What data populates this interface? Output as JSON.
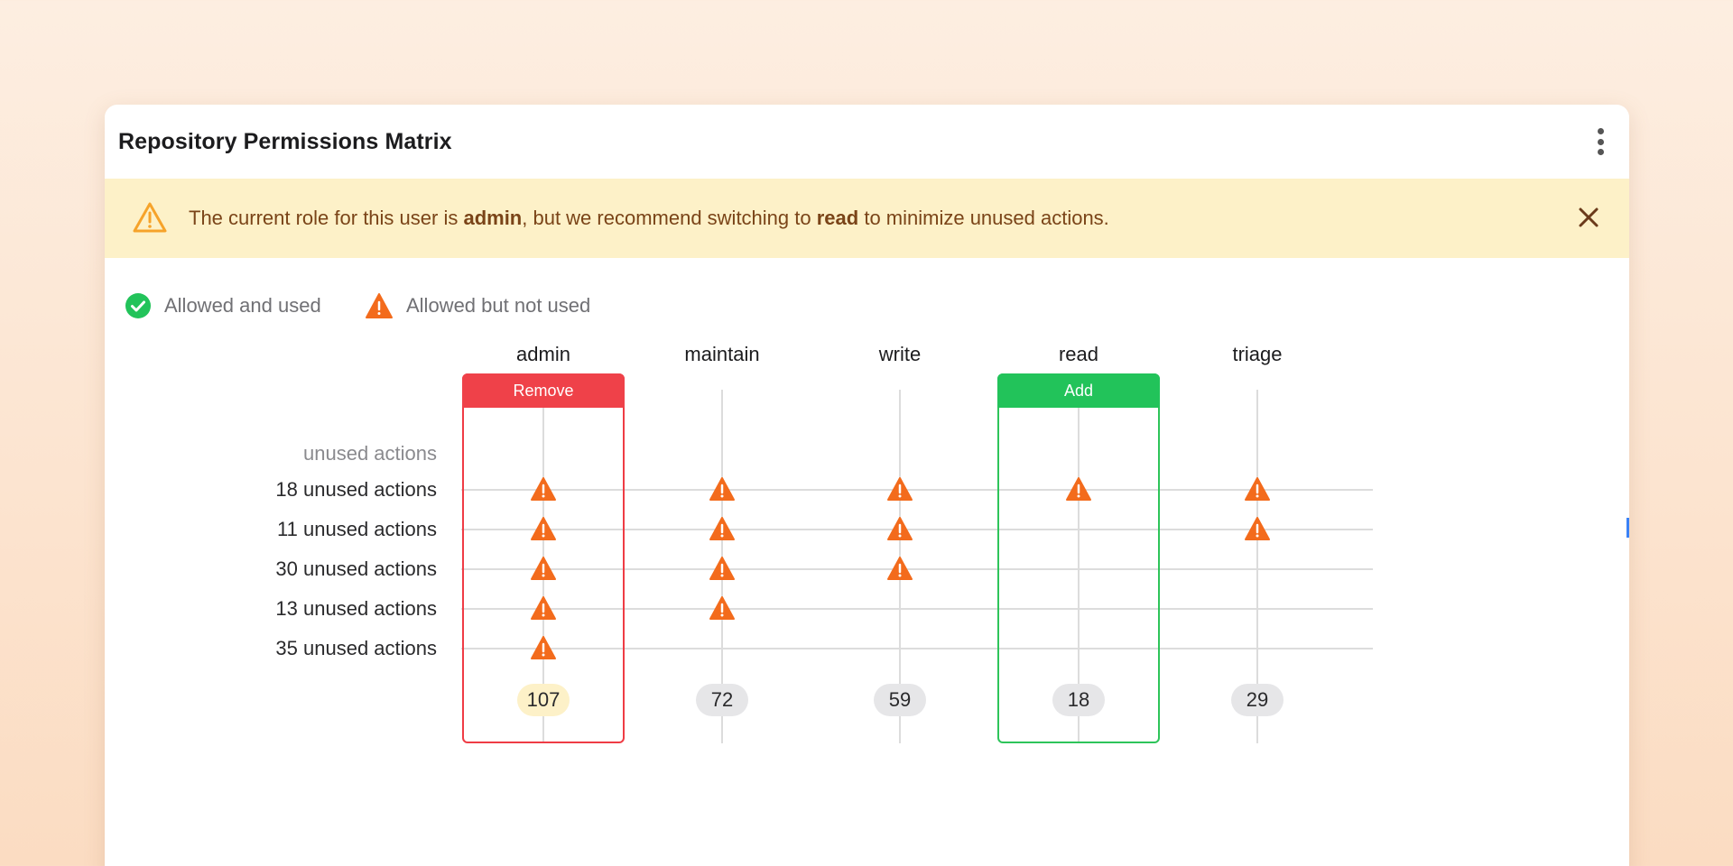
{
  "card": {
    "title": "Repository Permissions Matrix",
    "menu_icon": "kebab-vertical-icon"
  },
  "banner": {
    "icon": "warning-triangle-icon",
    "text_prefix": "The current role for this user is ",
    "current_role": "admin",
    "text_middle": ", but we recommend switching to ",
    "recommended_role": "read",
    "text_suffix": " to minimize unused actions.",
    "close_icon": "close-icon"
  },
  "legend": [
    {
      "icon": "check-circle-icon",
      "label": "Allowed and used",
      "color": "#22c35a"
    },
    {
      "icon": "warning-triangle-icon",
      "label": "Allowed but not used",
      "color": "#f36b1c"
    }
  ],
  "matrix": {
    "row_header": "unused actions",
    "roles": [
      {
        "name": "admin",
        "action": "Remove",
        "action_color": "#ef4149",
        "total": "107",
        "highlight": true
      },
      {
        "name": "maintain",
        "action": "",
        "total": "72",
        "highlight": false
      },
      {
        "name": "write",
        "action": "",
        "total": "59",
        "highlight": false
      },
      {
        "name": "read",
        "action": "Add",
        "action_color": "#22c35a",
        "total": "18",
        "highlight": false
      },
      {
        "name": "triage",
        "action": "",
        "total": "29",
        "highlight": false
      }
    ],
    "rows": [
      {
        "label": "18 unused actions",
        "cells": [
          true,
          true,
          true,
          true,
          true
        ]
      },
      {
        "label": "11 unused actions",
        "cells": [
          true,
          true,
          true,
          false,
          true
        ]
      },
      {
        "label": "30 unused actions",
        "cells": [
          true,
          true,
          true,
          false,
          false
        ]
      },
      {
        "label": "13 unused actions",
        "cells": [
          true,
          true,
          false,
          false,
          false
        ]
      },
      {
        "label": "35 unused actions",
        "cells": [
          true,
          false,
          false,
          false,
          false
        ]
      }
    ],
    "warning_color": "#f36b1c"
  }
}
